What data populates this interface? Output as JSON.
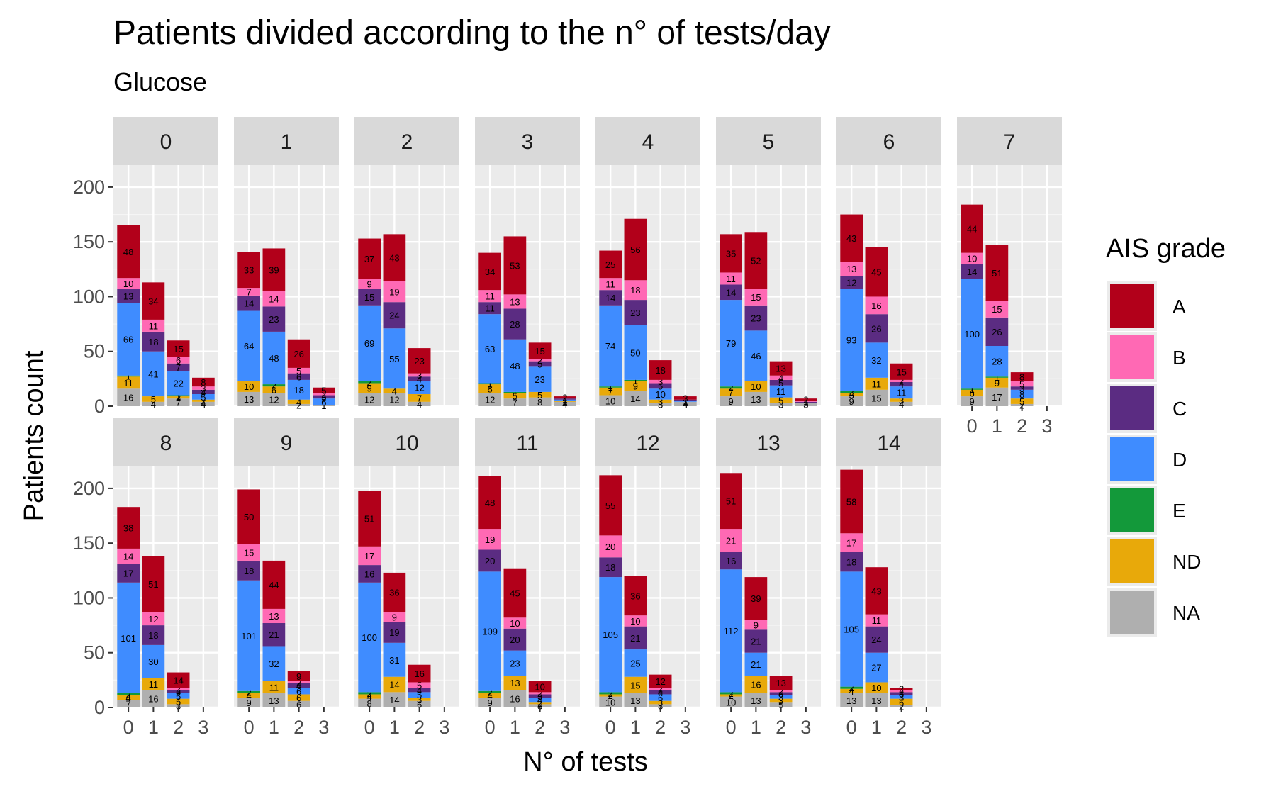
{
  "chart_data": {
    "type": "bar",
    "title": "Patients divided according to the n° of tests/day",
    "subtitle": "Glucose",
    "xlabel": "N° of tests",
    "ylabel": "Patients count",
    "ylim": [
      0,
      220
    ],
    "y_ticks": [
      0,
      50,
      100,
      150,
      200
    ],
    "categories": [
      "0",
      "1",
      "2",
      "3"
    ],
    "grid": true,
    "stacked": true,
    "legend": {
      "title": "AIS grade",
      "position": "right",
      "items": [
        {
          "label": "A",
          "color": "#B2001A"
        },
        {
          "label": "B",
          "color": "#FF69B4"
        },
        {
          "label": "C",
          "color": "#5B2C82"
        },
        {
          "label": "D",
          "color": "#3F8CFF"
        },
        {
          "label": "E",
          "color": "#13993A"
        },
        {
          "label": "ND",
          "color": "#E8A90A"
        },
        {
          "label": "NA",
          "color": "#AFAFAF"
        }
      ]
    },
    "stack_order": [
      "NA",
      "ND",
      "E",
      "D",
      "C",
      "B",
      "A"
    ],
    "panels": [
      {
        "label": "0",
        "bars": [
          {
            "NA": 16,
            "ND": 11,
            "E": 1,
            "D": 66,
            "C": 13,
            "B": 10,
            "A": 48
          },
          {
            "NA": 4,
            "ND": 5,
            "E": 0,
            "D": 41,
            "C": 18,
            "B": 11,
            "A": 34
          },
          {
            "NA": 7,
            "ND": 2,
            "E": 1,
            "D": 22,
            "C": 7,
            "B": 6,
            "A": 15
          },
          {
            "NA": 4,
            "ND": 2,
            "E": 0,
            "D": 5,
            "C": 4,
            "B": 3,
            "A": 8
          }
        ]
      },
      {
        "label": "1",
        "bars": [
          {
            "NA": 13,
            "ND": 10,
            "E": 0,
            "D": 64,
            "C": 14,
            "B": 7,
            "A": 33
          },
          {
            "NA": 12,
            "ND": 6,
            "E": 2,
            "D": 48,
            "C": 23,
            "B": 14,
            "A": 39
          },
          {
            "NA": 2,
            "ND": 4,
            "E": 0,
            "D": 18,
            "C": 6,
            "B": 5,
            "A": 26
          },
          {
            "NA": 1,
            "ND": 0,
            "E": 0,
            "D": 6,
            "C": 3,
            "B": 2,
            "A": 5
          }
        ]
      },
      {
        "label": "2",
        "bars": [
          {
            "NA": 12,
            "ND": 9,
            "E": 2,
            "D": 69,
            "C": 15,
            "B": 9,
            "A": 37
          },
          {
            "NA": 12,
            "ND": 4,
            "E": 0,
            "D": 55,
            "C": 24,
            "B": 19,
            "A": 43
          },
          {
            "NA": 4,
            "ND": 7,
            "E": 0,
            "D": 12,
            "C": 4,
            "B": 3,
            "A": 23
          },
          {
            "NA": 0,
            "ND": 0,
            "E": 0,
            "D": 0,
            "C": 0,
            "B": 0,
            "A": 0
          }
        ]
      },
      {
        "label": "3",
        "bars": [
          {
            "NA": 12,
            "ND": 8,
            "E": 1,
            "D": 63,
            "C": 11,
            "B": 11,
            "A": 34
          },
          {
            "NA": 7,
            "ND": 5,
            "E": 1,
            "D": 48,
            "C": 28,
            "B": 13,
            "A": 53
          },
          {
            "NA": 8,
            "ND": 5,
            "E": 0,
            "D": 23,
            "C": 5,
            "B": 2,
            "A": 15
          },
          {
            "NA": 4,
            "ND": 1,
            "E": 0,
            "D": 1,
            "C": 1,
            "B": 0,
            "A": 2
          }
        ]
      },
      {
        "label": "4",
        "bars": [
          {
            "NA": 10,
            "ND": 7,
            "E": 1,
            "D": 74,
            "C": 14,
            "B": 11,
            "A": 25
          },
          {
            "NA": 14,
            "ND": 9,
            "E": 1,
            "D": 50,
            "C": 23,
            "B": 18,
            "A": 56
          },
          {
            "NA": 3,
            "ND": 3,
            "E": 0,
            "D": 10,
            "C": 5,
            "B": 3,
            "A": 18
          },
          {
            "NA": 4,
            "ND": 0,
            "E": 0,
            "D": 1,
            "C": 1,
            "B": 0,
            "A": 3
          }
        ]
      },
      {
        "label": "5",
        "bars": [
          {
            "NA": 9,
            "ND": 7,
            "E": 2,
            "D": 79,
            "C": 14,
            "B": 11,
            "A": 35
          },
          {
            "NA": 13,
            "ND": 10,
            "E": 0,
            "D": 46,
            "C": 23,
            "B": 15,
            "A": 52
          },
          {
            "NA": 3,
            "ND": 5,
            "E": 0,
            "D": 11,
            "C": 5,
            "B": 4,
            "A": 13
          },
          {
            "NA": 3,
            "ND": 0,
            "E": 0,
            "D": 0,
            "C": 1,
            "B": 1,
            "A": 2
          }
        ]
      },
      {
        "label": "6",
        "bars": [
          {
            "NA": 9,
            "ND": 3,
            "E": 2,
            "D": 93,
            "C": 12,
            "B": 13,
            "A": 43
          },
          {
            "NA": 15,
            "ND": 11,
            "E": 0,
            "D": 32,
            "C": 26,
            "B": 16,
            "A": 45
          },
          {
            "NA": 4,
            "ND": 3,
            "E": 0,
            "D": 11,
            "C": 4,
            "B": 2,
            "A": 15
          },
          {
            "NA": 0,
            "ND": 0,
            "E": 0,
            "D": 0,
            "C": 0,
            "B": 0,
            "A": 0
          }
        ]
      },
      {
        "label": "7",
        "bars": [
          {
            "NA": 9,
            "ND": 6,
            "E": 1,
            "D": 100,
            "C": 14,
            "B": 10,
            "A": 44
          },
          {
            "NA": 17,
            "ND": 9,
            "E": 1,
            "D": 28,
            "C": 26,
            "B": 15,
            "A": 51
          },
          {
            "NA": 2,
            "ND": 5,
            "E": 0,
            "D": 8,
            "C": 3,
            "B": 5,
            "A": 8
          },
          {
            "NA": 0,
            "ND": 0,
            "E": 0,
            "D": 0,
            "C": 0,
            "B": 0,
            "A": 0
          }
        ]
      },
      {
        "label": "8",
        "bars": [
          {
            "NA": 7,
            "ND": 4,
            "E": 2,
            "D": 101,
            "C": 17,
            "B": 14,
            "A": 38
          },
          {
            "NA": 16,
            "ND": 11,
            "E": 0,
            "D": 30,
            "C": 18,
            "B": 12,
            "A": 51
          },
          {
            "NA": 3,
            "ND": 5,
            "E": 0,
            "D": 5,
            "C": 3,
            "B": 2,
            "A": 14
          },
          {
            "NA": 0,
            "ND": 0,
            "E": 0,
            "D": 0,
            "C": 0,
            "B": 0,
            "A": 0
          }
        ]
      },
      {
        "label": "9",
        "bars": [
          {
            "NA": 9,
            "ND": 4,
            "E": 2,
            "D": 101,
            "C": 18,
            "B": 15,
            "A": 50
          },
          {
            "NA": 13,
            "ND": 11,
            "E": 0,
            "D": 32,
            "C": 21,
            "B": 13,
            "A": 44
          },
          {
            "NA": 6,
            "ND": 6,
            "E": 0,
            "D": 6,
            "C": 4,
            "B": 2,
            "A": 9
          },
          {
            "NA": 0,
            "ND": 0,
            "E": 0,
            "D": 0,
            "C": 0,
            "B": 0,
            "A": 0
          }
        ]
      },
      {
        "label": "10",
        "bars": [
          {
            "NA": 8,
            "ND": 4,
            "E": 2,
            "D": 100,
            "C": 16,
            "B": 17,
            "A": 51
          },
          {
            "NA": 14,
            "ND": 14,
            "E": 0,
            "D": 31,
            "C": 19,
            "B": 9,
            "A": 36
          },
          {
            "NA": 6,
            "ND": 3,
            "E": 0,
            "D": 5,
            "C": 4,
            "B": 5,
            "A": 16
          },
          {
            "NA": 0,
            "ND": 0,
            "E": 0,
            "D": 0,
            "C": 0,
            "B": 0,
            "A": 0
          }
        ]
      },
      {
        "label": "11",
        "bars": [
          {
            "NA": 9,
            "ND": 4,
            "E": 2,
            "D": 109,
            "C": 20,
            "B": 19,
            "A": 48
          },
          {
            "NA": 16,
            "ND": 13,
            "E": 0,
            "D": 23,
            "C": 20,
            "B": 10,
            "A": 45
          },
          {
            "NA": 3,
            "ND": 2,
            "E": 0,
            "D": 4,
            "C": 3,
            "B": 2,
            "A": 10
          },
          {
            "NA": 0,
            "ND": 0,
            "E": 0,
            "D": 0,
            "C": 0,
            "B": 0,
            "A": 0
          }
        ]
      },
      {
        "label": "12",
        "bars": [
          {
            "NA": 10,
            "ND": 2,
            "E": 2,
            "D": 105,
            "C": 18,
            "B": 20,
            "A": 55
          },
          {
            "NA": 13,
            "ND": 15,
            "E": 0,
            "D": 25,
            "C": 21,
            "B": 10,
            "A": 36
          },
          {
            "NA": 3,
            "ND": 3,
            "E": 0,
            "D": 6,
            "C": 4,
            "B": 2,
            "A": 12
          },
          {
            "NA": 0,
            "ND": 0,
            "E": 0,
            "D": 0,
            "C": 0,
            "B": 0,
            "A": 0
          }
        ]
      },
      {
        "label": "13",
        "bars": [
          {
            "NA": 10,
            "ND": 2,
            "E": 2,
            "D": 112,
            "C": 16,
            "B": 21,
            "A": 51
          },
          {
            "NA": 13,
            "ND": 16,
            "E": 0,
            "D": 21,
            "C": 21,
            "B": 9,
            "A": 39
          },
          {
            "NA": 5,
            "ND": 3,
            "E": 0,
            "D": 3,
            "C": 3,
            "B": 2,
            "A": 13
          },
          {
            "NA": 0,
            "ND": 0,
            "E": 0,
            "D": 0,
            "C": 0,
            "B": 0,
            "A": 0
          }
        ]
      },
      {
        "label": "14",
        "bars": [
          {
            "NA": 13,
            "ND": 4,
            "E": 2,
            "D": 105,
            "C": 18,
            "B": 17,
            "A": 58
          },
          {
            "NA": 13,
            "ND": 10,
            "E": 0,
            "D": 27,
            "C": 24,
            "B": 11,
            "A": 43
          },
          {
            "NA": 2,
            "ND": 6,
            "E": 0,
            "D": 3,
            "C": 3,
            "B": 2,
            "A": 2
          },
          {
            "NA": 0,
            "ND": 0,
            "E": 0,
            "D": 0,
            "C": 0,
            "B": 0,
            "A": 0
          }
        ]
      }
    ]
  }
}
